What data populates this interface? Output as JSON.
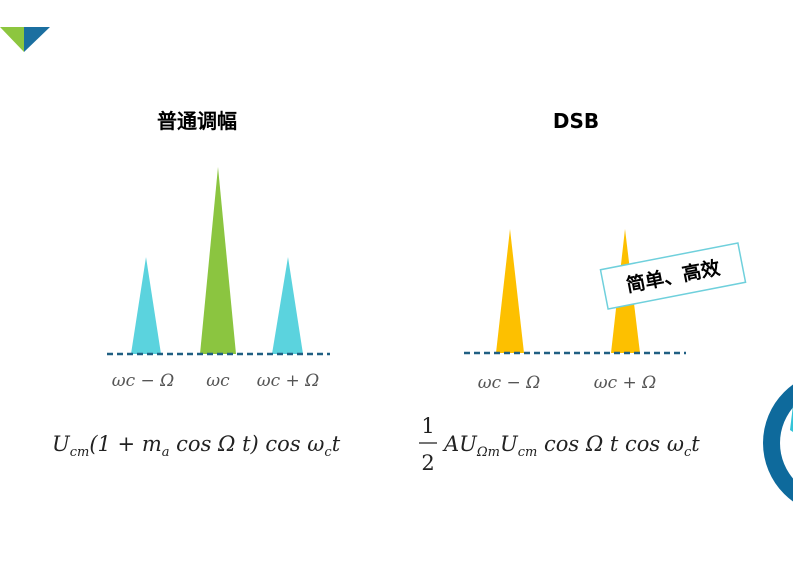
{
  "left": {
    "title": "普通调幅",
    "labels": [
      "ωc − Ω",
      "ωc",
      "ωc + Ω"
    ],
    "formula": [
      "U",
      "cm",
      "(1 + ",
      "m",
      "a",
      " cos Ω t) cos ω",
      "c",
      "t"
    ]
  },
  "right": {
    "title": "DSB",
    "labels": [
      "ωc − Ω",
      "ωc + Ω"
    ],
    "note": "简单、高效",
    "fraction": [
      "1",
      "2"
    ],
    "formula": [
      "AU",
      "Ωm",
      "U",
      "cm",
      " cos Ω t cos ω",
      "c",
      "t"
    ]
  }
}
